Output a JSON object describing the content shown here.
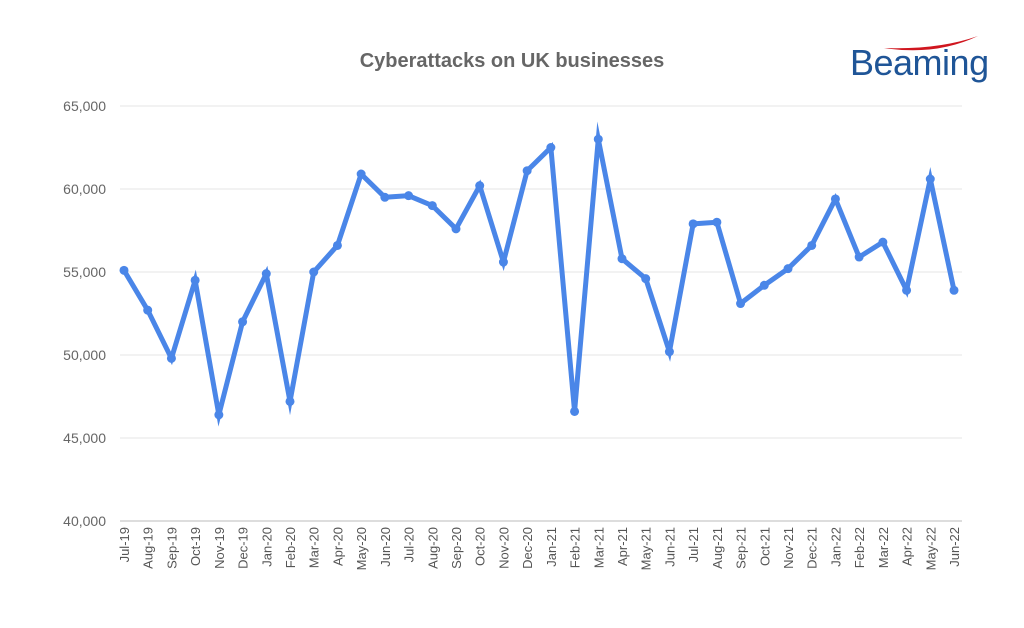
{
  "brand": {
    "logo_text": "Beaming",
    "logo_color": "#1f5597",
    "swoosh_color": "#d0161f"
  },
  "chart_data": {
    "type": "line",
    "title": "Cyberattacks on UK businesses",
    "xlabel": "",
    "ylabel": "",
    "ylim": [
      40000,
      65000
    ],
    "yticks": [
      40000,
      45000,
      50000,
      55000,
      60000,
      65000
    ],
    "ytick_labels": [
      "40,000",
      "45,000",
      "50,000",
      "55,000",
      "60,000",
      "65,000"
    ],
    "grid": true,
    "legend": "none",
    "line_color": "#4a86e8",
    "categories": [
      "Jul-19",
      "Aug-19",
      "Sep-19",
      "Oct-19",
      "Nov-19",
      "Dec-19",
      "Jan-20",
      "Feb-20",
      "Mar-20",
      "Apr-20",
      "May-20",
      "Jun-20",
      "Jul-20",
      "Aug-20",
      "Sep-20",
      "Oct-20",
      "Nov-20",
      "Dec-20",
      "Jan-21",
      "Feb-21",
      "Mar-21",
      "Apr-21",
      "May-21",
      "Jun-21",
      "Jul-21",
      "Aug-21",
      "Sep-21",
      "Oct-21",
      "Nov-21",
      "Dec-21",
      "Jan-22",
      "Feb-22",
      "Mar-22",
      "Apr-22",
      "May-22",
      "Jun-22"
    ],
    "values": [
      55100,
      52700,
      49800,
      54500,
      46400,
      52000,
      54900,
      47200,
      55000,
      56600,
      60900,
      59500,
      59600,
      59000,
      57600,
      60200,
      55600,
      61100,
      62500,
      46600,
      63000,
      55800,
      54600,
      50200,
      57900,
      58000,
      53100,
      54200,
      55200,
      56600,
      59400,
      55900,
      56800,
      53900,
      60600,
      53900
    ]
  }
}
